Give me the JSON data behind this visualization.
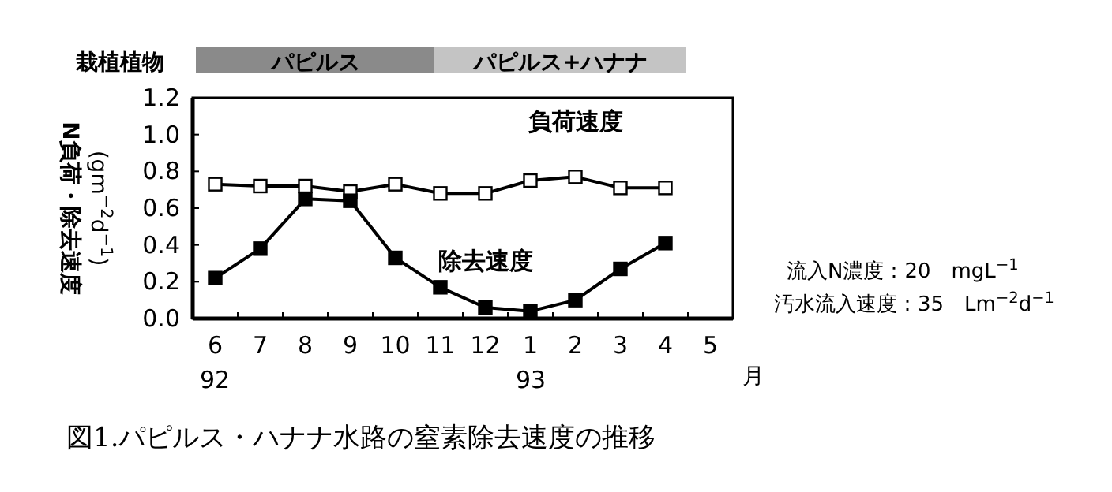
{
  "chart_data": {
    "type": "line",
    "title": "図1.パピルス・ハナナ水路の窒素除去速度の推移",
    "ylabel": "N負荷・除去速度 (gm$^{−2}$d$^{−1}$)",
    "categories": [
      "6",
      "7",
      "8",
      "9",
      "10",
      "11",
      "12",
      "1",
      "2",
      "3",
      "4",
      "5"
    ],
    "series": [
      {
        "name": "負荷速度",
        "color": "#000000",
        "values": [
          0.73,
          0.72,
          0.72,
          0.69,
          0.73,
          0.68,
          0.68,
          0.75,
          0.77,
          0.71,
          0.71,
          null
        ]
      },
      {
        "name": "除去速度",
        "color": "#000000",
        "values": [
          0.22,
          0.38,
          0.65,
          0.64,
          0.33,
          0.17,
          0.06,
          0.04,
          0.1,
          0.27,
          0.41,
          null
        ]
      }
    ],
    "ylim": [
      0,
      1.2
    ],
    "yticks": [
      {
        "value": 0,
        "label": "0.0"
      },
      {
        "value": 0.2,
        "label": "0.2"
      },
      {
        "value": 0.4,
        "label": "0.4"
      },
      {
        "value": 0.6,
        "label": "0.6"
      },
      {
        "value": 0.8,
        "label": "0.8"
      },
      {
        "value": 1.0,
        "label": "1.0"
      },
      {
        "value": 1.2,
        "label": "1.2"
      }
    ],
    "annotations": [
      "栽植植物",
      "パピルス",
      "パピルス+ハナナ",
      "流入N濃度：20　mgL$^{−1}$",
      "汚水流入速度：35　Lm$^{−2}$d$^{−1}$",
      "月",
      "92",
      "93"
    ],
    "marker": "square",
    "line_style": "solid",
    "grid": false,
    "legend": false
  }
}
